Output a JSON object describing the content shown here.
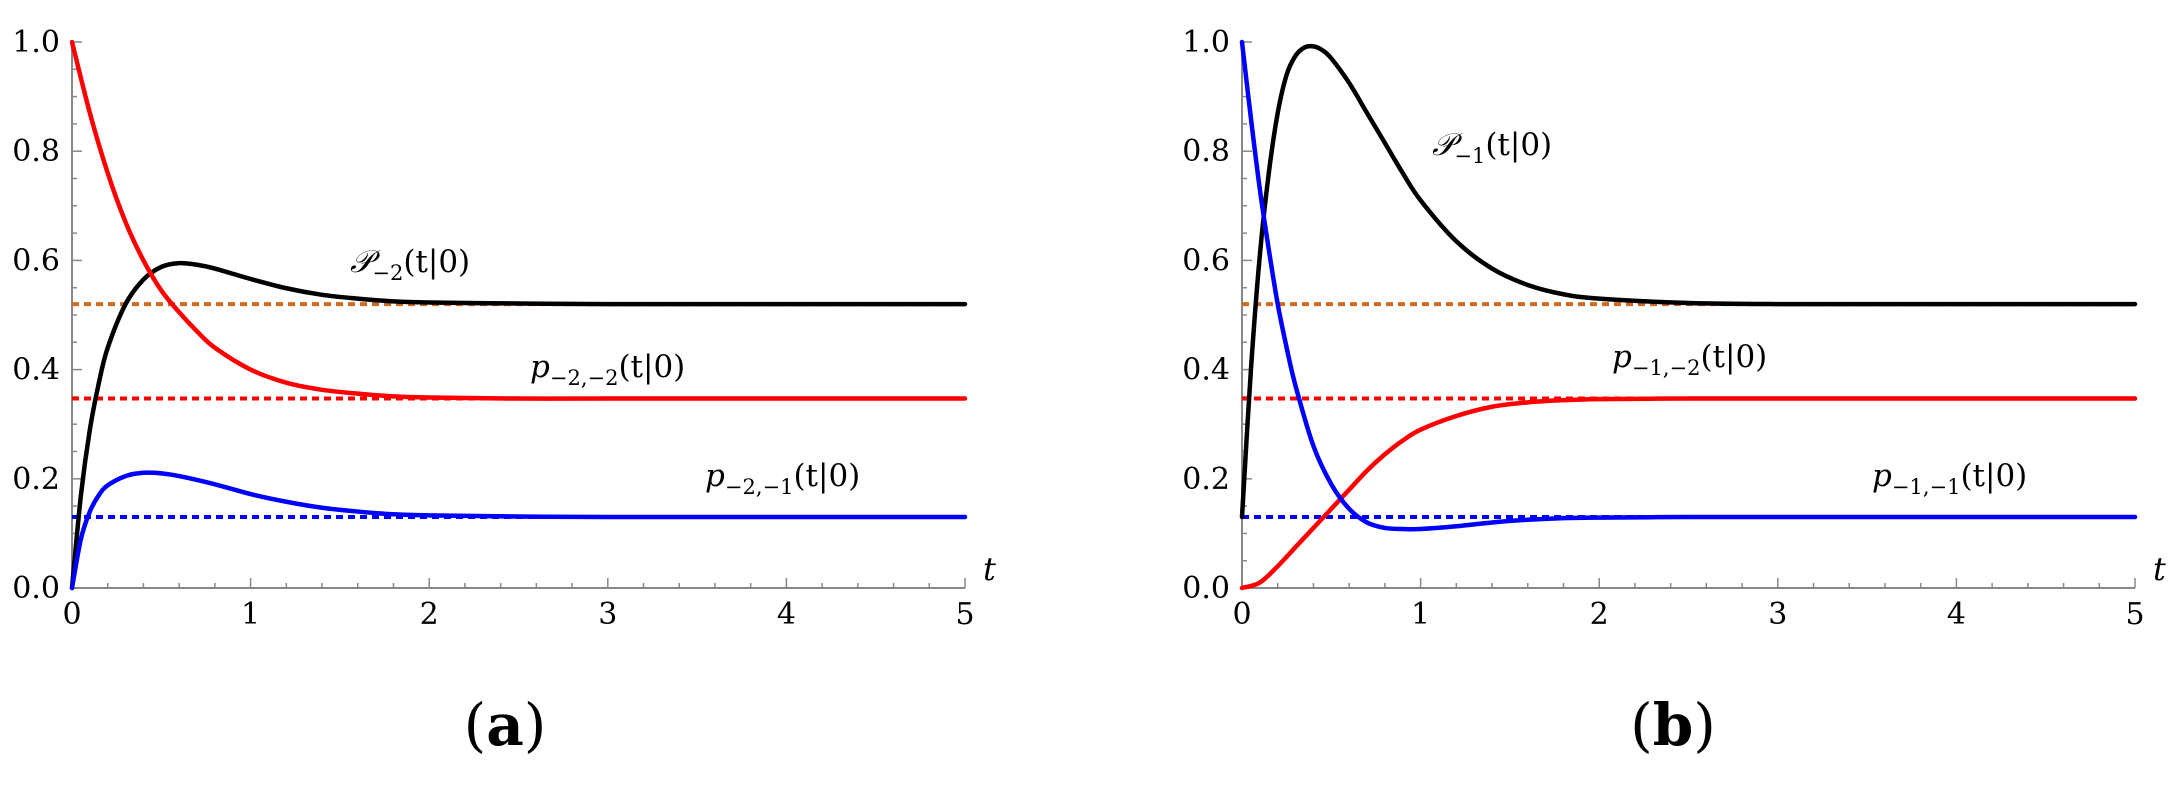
{
  "chart_data": [
    {
      "type": "line",
      "panel_label": "a",
      "xlabel": "t",
      "ylabel": "",
      "xlim": [
        0,
        5
      ],
      "ylim": [
        0,
        1
      ],
      "x_ticks": [
        0,
        1,
        2,
        3,
        4,
        5
      ],
      "x_tick_labels": [
        "0",
        "1",
        "2",
        "3",
        "4",
        "5"
      ],
      "y_ticks": [
        0,
        0.2,
        0.4,
        0.6,
        0.8,
        1.0
      ],
      "y_tick_labels": [
        "0.0",
        "0.2",
        "0.4",
        "0.6",
        "0.8",
        "1.0"
      ],
      "grid": false,
      "series": [
        {
          "name": "𝒫₋₂(t|0)",
          "color": "#000000",
          "style": "solid",
          "x": [
            0,
            0.05,
            0.1,
            0.15,
            0.2,
            0.3,
            0.4,
            0.5,
            0.6,
            0.7,
            0.8,
            1.0,
            1.2,
            1.4,
            1.6,
            1.8,
            2.0,
            2.5,
            3.0,
            4.0,
            5.0
          ],
          "y": [
            0,
            0.17,
            0.29,
            0.375,
            0.44,
            0.52,
            0.565,
            0.588,
            0.595,
            0.592,
            0.585,
            0.566,
            0.549,
            0.537,
            0.53,
            0.525,
            0.523,
            0.521,
            0.52,
            0.52,
            0.52
          ]
        },
        {
          "name": "p₋₂,₋₂(t|0)",
          "color": "#ff0000",
          "style": "solid",
          "x": [
            0,
            0.1,
            0.2,
            0.3,
            0.4,
            0.5,
            0.6,
            0.7,
            0.8,
            1.0,
            1.2,
            1.4,
            1.6,
            1.8,
            2.0,
            2.5,
            3.0,
            4.0,
            5.0
          ],
          "y": [
            1.0,
            0.87,
            0.76,
            0.67,
            0.6,
            0.545,
            0.505,
            0.47,
            0.44,
            0.4,
            0.376,
            0.363,
            0.356,
            0.351,
            0.349,
            0.347,
            0.347,
            0.347,
            0.347
          ]
        },
        {
          "name": "p₋₂,₋₁(t|0)",
          "color": "#0000ff",
          "style": "solid",
          "x": [
            0,
            0.05,
            0.1,
            0.15,
            0.2,
            0.3,
            0.4,
            0.5,
            0.6,
            0.8,
            1.0,
            1.2,
            1.4,
            1.6,
            1.8,
            2.0,
            2.5,
            3.0,
            4.0,
            5.0
          ],
          "y": [
            0,
            0.09,
            0.14,
            0.17,
            0.188,
            0.205,
            0.211,
            0.21,
            0.205,
            0.19,
            0.172,
            0.158,
            0.147,
            0.14,
            0.135,
            0.133,
            0.131,
            0.13,
            0.13,
            0.13
          ]
        },
        {
          "name": "",
          "color": "#d2691e",
          "style": "dotted",
          "x": [
            0,
            5
          ],
          "y": [
            0.52,
            0.52
          ]
        },
        {
          "name": "",
          "color": "#ff0000",
          "style": "dotted",
          "x": [
            0,
            5
          ],
          "y": [
            0.347,
            0.347
          ]
        },
        {
          "name": "",
          "color": "#0000ff",
          "style": "dotted",
          "x": [
            0,
            5
          ],
          "y": [
            0.13,
            0.13
          ]
        }
      ]
    },
    {
      "type": "line",
      "panel_label": "b",
      "xlabel": "t",
      "ylabel": "",
      "xlim": [
        0,
        5
      ],
      "ylim": [
        0,
        1
      ],
      "x_ticks": [
        0,
        1,
        2,
        3,
        4,
        5
      ],
      "x_tick_labels": [
        "0",
        "1",
        "2",
        "3",
        "4",
        "5"
      ],
      "y_ticks": [
        0,
        0.2,
        0.4,
        0.6,
        0.8,
        1.0
      ],
      "y_tick_labels": [
        "0.0",
        "0.2",
        "0.4",
        "0.6",
        "0.8",
        "1.0"
      ],
      "grid": false,
      "series": [
        {
          "name": "𝒫₋₁(t|0)",
          "color": "#000000",
          "style": "solid",
          "x": [
            0,
            0.05,
            0.1,
            0.15,
            0.2,
            0.25,
            0.3,
            0.35,
            0.4,
            0.45,
            0.5,
            0.6,
            0.7,
            0.8,
            0.9,
            1.0,
            1.2,
            1.4,
            1.6,
            1.8,
            2.0,
            2.5,
            3.0,
            4.0,
            5.0
          ],
          "y": [
            0.13,
            0.4,
            0.61,
            0.76,
            0.87,
            0.94,
            0.975,
            0.99,
            0.992,
            0.985,
            0.97,
            0.925,
            0.87,
            0.815,
            0.76,
            0.71,
            0.635,
            0.585,
            0.555,
            0.538,
            0.53,
            0.522,
            0.52,
            0.52,
            0.52
          ]
        },
        {
          "name": "p₋₁,₋₂(t|0)",
          "color": "#ff0000",
          "style": "solid",
          "x": [
            0,
            0.1,
            0.2,
            0.3,
            0.4,
            0.5,
            0.6,
            0.7,
            0.8,
            0.9,
            1.0,
            1.2,
            1.4,
            1.6,
            1.8,
            2.0,
            2.5,
            3.0,
            4.0,
            5.0
          ],
          "y": [
            0,
            0.01,
            0.04,
            0.075,
            0.11,
            0.145,
            0.18,
            0.215,
            0.245,
            0.27,
            0.29,
            0.315,
            0.332,
            0.34,
            0.344,
            0.346,
            0.347,
            0.347,
            0.347,
            0.347
          ]
        },
        {
          "name": "p₋₁,₋₁(t|0)",
          "color": "#0000ff",
          "style": "solid",
          "x": [
            0,
            0.05,
            0.1,
            0.15,
            0.2,
            0.25,
            0.3,
            0.4,
            0.5,
            0.6,
            0.7,
            0.8,
            0.9,
            1.0,
            1.2,
            1.4,
            1.6,
            1.8,
            2.0,
            2.5,
            3.0,
            4.0,
            5.0
          ],
          "y": [
            1.0,
            0.86,
            0.73,
            0.62,
            0.52,
            0.44,
            0.37,
            0.26,
            0.19,
            0.145,
            0.12,
            0.11,
            0.108,
            0.108,
            0.113,
            0.12,
            0.125,
            0.128,
            0.129,
            0.13,
            0.13,
            0.13,
            0.13
          ]
        },
        {
          "name": "",
          "color": "#d2691e",
          "style": "dotted",
          "x": [
            0,
            5
          ],
          "y": [
            0.52,
            0.52
          ]
        },
        {
          "name": "",
          "color": "#ff0000",
          "style": "dotted",
          "x": [
            0,
            5
          ],
          "y": [
            0.347,
            0.347
          ]
        },
        {
          "name": "",
          "color": "#0000ff",
          "style": "dotted",
          "x": [
            0,
            5
          ],
          "y": [
            0.13,
            0.13
          ]
        }
      ]
    }
  ],
  "annotations": [
    {
      "panel": 0,
      "label_id": "P-2",
      "pieces": [
        {
          "t": "𝒫",
          "k": "ital"
        },
        {
          "t": "−2",
          "k": "sub"
        },
        {
          "t": "(t|0)",
          "k": ""
        }
      ]
    },
    {
      "panel": 0,
      "label_id": "p-2-2",
      "pieces": [
        {
          "t": "p",
          "k": "ital"
        },
        {
          "t": "−2,−2",
          "k": "sub"
        },
        {
          "t": "(t|0)",
          "k": ""
        }
      ]
    },
    {
      "panel": 0,
      "label_id": "p-2-1",
      "pieces": [
        {
          "t": "p",
          "k": "ital"
        },
        {
          "t": "−2,−1",
          "k": "sub"
        },
        {
          "t": "(t|0)",
          "k": ""
        }
      ]
    },
    {
      "panel": 1,
      "label_id": "P-1",
      "pieces": [
        {
          "t": "𝒫",
          "k": "ital"
        },
        {
          "t": "−1",
          "k": "sub"
        },
        {
          "t": "(t|0)",
          "k": ""
        }
      ]
    },
    {
      "panel": 1,
      "label_id": "p-1-2",
      "pieces": [
        {
          "t": "p",
          "k": "ital"
        },
        {
          "t": "−1,−2",
          "k": "sub"
        },
        {
          "t": "(t|0)",
          "k": ""
        }
      ]
    },
    {
      "panel": 1,
      "label_id": "p-1-1",
      "pieces": [
        {
          "t": "p",
          "k": "ital"
        },
        {
          "t": "−1,−1",
          "k": "sub"
        },
        {
          "t": "(t|0)",
          "k": ""
        }
      ]
    }
  ],
  "panel_captions": [
    {
      "open": "(",
      "letter": "a",
      "close": ")"
    },
    {
      "open": "(",
      "letter": "b",
      "close": ")"
    }
  ]
}
